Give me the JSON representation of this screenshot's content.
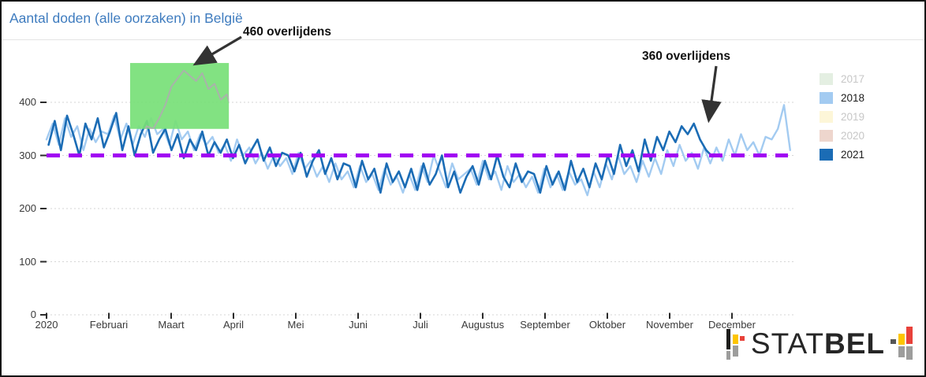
{
  "header": {
    "title": "Aantal doden (alle oorzaken) in België",
    "title_color": "#3f7cbf"
  },
  "annotations_text": {
    "a460": "460 overlijdens",
    "a360": "360 overlijdens"
  },
  "logo": {
    "stat": "STAT",
    "bel": "BEL",
    "colors": {
      "black": "#1d1d1b",
      "yellow": "#fdc500",
      "red": "#e8413a",
      "gray": "#9d9d9c",
      "darkgray": "#575756"
    }
  },
  "chart_data": {
    "type": "line",
    "title": "Aantal doden (alle oorzaken) in België",
    "xlabel": "",
    "ylabel": "",
    "x_axis": {
      "tick_labels": [
        "2020",
        "Februari",
        "Maart",
        "April",
        "Mei",
        "Juni",
        "Juli",
        "Augustus",
        "September",
        "Oktober",
        "November",
        "December"
      ],
      "unit": "dag van het jaar",
      "range_days": [
        1,
        365
      ]
    },
    "y_axis": {
      "ticks": [
        0,
        100,
        200,
        300,
        400
      ],
      "range": [
        0,
        475
      ],
      "grid": "dotted"
    },
    "legend_position": "right",
    "legend": {
      "items": [
        {
          "label": "2017",
          "color": "#e4efe2",
          "active": false
        },
        {
          "label": "2018",
          "color": "#a3cbf1",
          "active": true
        },
        {
          "label": "2019",
          "color": "#fdf6d8",
          "active": false
        },
        {
          "label": "2020",
          "color": "#eed6cd",
          "active": false
        },
        {
          "label": "2021",
          "color": "#1b6cb5",
          "active": true
        }
      ]
    },
    "reference_line": {
      "value": 300,
      "color": "#a100f2",
      "style": "dashed",
      "width": 5
    },
    "highlight_region": {
      "label": "460 overlijdens",
      "day_start": 41.8,
      "day_end": 90,
      "value_min": 350,
      "value_max": 474,
      "color": "#77e077",
      "opacity": 0.92
    },
    "annotations": [
      {
        "text": "460 overlijdens",
        "value": 460,
        "arrow_to": "piek 2020 in gemarkeerd kader"
      },
      {
        "text": "360 overlijdens",
        "value": 360,
        "arrow_to": "piek 2021 november"
      }
    ],
    "series": [
      {
        "name": "2018",
        "color": "#a3cbf1",
        "width": 2.4,
        "start_day": 1,
        "step_days": 3,
        "values": [
          330,
          360,
          320,
          370,
          335,
          355,
          310,
          350,
          325,
          345,
          340,
          375,
          330,
          360,
          320,
          355,
          335,
          370,
          340,
          350,
          320,
          365,
          330,
          345,
          310,
          340,
          320,
          335,
          305,
          320,
          290,
          330,
          300,
          315,
          285,
          305,
          275,
          300,
          280,
          295,
          265,
          305,
          275,
          290,
          260,
          280,
          250,
          285,
          255,
          270,
          240,
          280,
          250,
          265,
          235,
          275,
          245,
          260,
          230,
          265,
          235,
          280,
          250,
          300,
          270,
          240,
          285,
          255,
          265,
          275,
          245,
          290,
          255,
          270,
          235,
          280,
          250,
          265,
          240,
          260,
          230,
          275,
          240,
          265,
          235,
          270,
          245,
          255,
          225,
          270,
          240,
          285,
          255,
          300,
          265,
          280,
          250,
          290,
          260,
          295,
          265,
          310,
          280,
          320,
          290,
          305,
          275,
          315,
          285,
          315,
          290,
          330,
          300,
          340,
          310,
          325,
          300,
          335,
          330,
          350,
          395,
          310
        ]
      },
      {
        "name": "2021",
        "color": "#1b6cb5",
        "width": 2.6,
        "start_day": 2,
        "step_days": 3,
        "values": [
          320,
          365,
          310,
          375,
          340,
          300,
          360,
          330,
          370,
          315,
          345,
          380,
          310,
          355,
          300,
          340,
          365,
          305,
          330,
          350,
          310,
          340,
          295,
          330,
          310,
          345,
          300,
          325,
          305,
          330,
          295,
          320,
          285,
          310,
          330,
          290,
          315,
          280,
          305,
          300,
          270,
          305,
          260,
          290,
          310,
          265,
          295,
          255,
          285,
          280,
          240,
          290,
          255,
          275,
          230,
          285,
          250,
          270,
          240,
          275,
          235,
          285,
          245,
          265,
          300,
          240,
          270,
          230,
          260,
          280,
          245,
          290,
          255,
          300,
          260,
          240,
          285,
          250,
          270,
          265,
          230,
          280,
          245,
          270,
          235,
          290,
          250,
          275,
          240,
          285,
          255,
          300,
          265,
          320,
          280,
          310,
          270,
          330,
          290,
          335,
          310,
          345,
          325,
          355,
          340,
          360,
          330,
          310,
          298
        ]
      },
      {
        "name": "2020 (eerste golf, enkel zichtbaar in kader)",
        "color": "#a9b3aa",
        "width": 2,
        "start_day": 44,
        "step_days": 3,
        "clip_to_highlight": true,
        "values": [
          345,
          335,
          355,
          350,
          370,
          395,
          430,
          445,
          460,
          450,
          440,
          455,
          425,
          435,
          405,
          415,
          380,
          395,
          360,
          350
        ]
      }
    ]
  }
}
